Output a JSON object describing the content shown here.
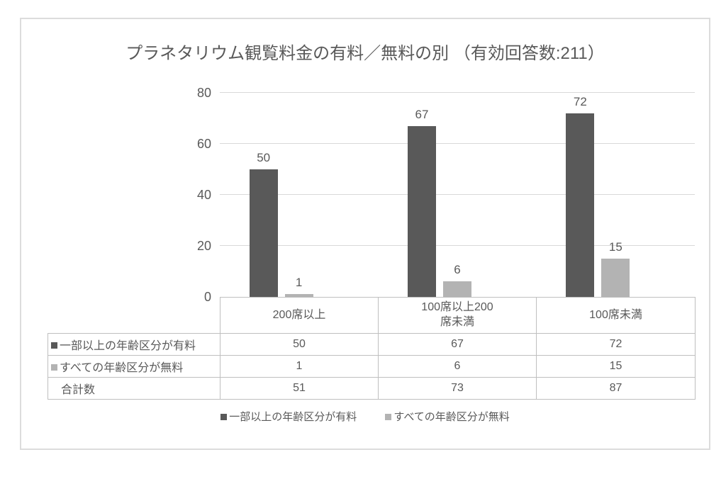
{
  "chart_data": {
    "type": "bar",
    "title": "プラネタリウム観覧料金の有料／無料の別 （有効回答数:211）",
    "categories": [
      "200席以上",
      "100席以上200席未満",
      "100席未満"
    ],
    "series": [
      {
        "name": "一部以上の年齢区分が有料",
        "values": [
          50,
          67,
          72
        ],
        "color": "#595959"
      },
      {
        "name": "すべての年齢区分が無料",
        "values": [
          1,
          6,
          15
        ],
        "color": "#b3b3b3"
      }
    ],
    "totals": {
      "label": "合計数",
      "values": [
        51,
        73,
        87
      ]
    },
    "ylim": [
      0,
      80
    ],
    "yticks": [
      0,
      20,
      40,
      60,
      80
    ],
    "grid": true,
    "legend_position": "bottom",
    "data_table": true
  },
  "colors": {
    "dark_bar": "#595959",
    "light_bar": "#b3b3b3",
    "gridline": "#d9d9d9",
    "table_border": "#bfbfbf",
    "frame_border": "#dcdcdc",
    "text": "#595959"
  }
}
